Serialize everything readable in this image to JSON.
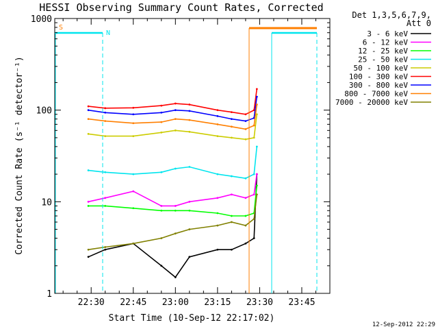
{
  "chart_data": {
    "type": "line",
    "title": "HESSI Observing Summary Count Rates, Corrected",
    "xlabel": "Start Time (10-Sep-12 22:17:02)",
    "ylabel": "Corrected Count Rate (s⁻¹ detector⁻¹)",
    "y_scale": "log",
    "xlim": [
      "22:17:02",
      "23:55:00"
    ],
    "ylim": [
      1,
      1000
    ],
    "x_ticks": [
      "22:30",
      "22:45",
      "23:00",
      "23:15",
      "23:30",
      "23:45"
    ],
    "y_ticks": [
      "1",
      "10",
      "100",
      "1000"
    ],
    "legend_header": [
      "Det 1,3,5,6,7,9,",
      "Att 0"
    ],
    "legend_position": "right",
    "timestamp": "12-Sep-2012 22:29",
    "flags": [
      {
        "label": "S",
        "color": "#ff7f00"
      },
      {
        "label": "N",
        "color": "#00e5ee"
      }
    ],
    "x": [
      "22:29",
      "22:35",
      "22:45",
      "22:55",
      "23:00",
      "23:05",
      "23:15",
      "23:20",
      "23:25",
      "23:28",
      "23:29"
    ],
    "series": [
      {
        "name": "3 - 6 keV",
        "color": "#000000",
        "values": [
          2.5,
          3.0,
          3.5,
          2.0,
          1.5,
          2.5,
          3.0,
          3.0,
          3.5,
          4.0,
          20
        ]
      },
      {
        "name": "6 - 12 keV",
        "color": "#ff00ff",
        "values": [
          10,
          11,
          13,
          9,
          9,
          10,
          11,
          12,
          11,
          12,
          20
        ]
      },
      {
        "name": "12 - 25 keV",
        "color": "#00ff00",
        "values": [
          9,
          9,
          8.5,
          8,
          8,
          8,
          7.5,
          7,
          7,
          7.5,
          15
        ]
      },
      {
        "name": "25 - 50 keV",
        "color": "#00e5ee",
        "values": [
          22,
          21,
          20,
          21,
          23,
          24,
          20,
          19,
          18,
          20,
          40
        ]
      },
      {
        "name": "50 - 100 keV",
        "color": "#cccc00",
        "values": [
          55,
          52,
          52,
          57,
          60,
          58,
          52,
          50,
          48,
          50,
          90
        ]
      },
      {
        "name": "100 - 300 keV",
        "color": "#ff0000",
        "values": [
          110,
          105,
          106,
          112,
          118,
          115,
          100,
          95,
          90,
          100,
          170
        ]
      },
      {
        "name": "300 - 800 keV",
        "color": "#0000ff",
        "values": [
          100,
          94,
          90,
          94,
          100,
          98,
          86,
          80,
          76,
          82,
          140
        ]
      },
      {
        "name": "800 - 7000 keV",
        "color": "#ff7f00",
        "values": [
          80,
          76,
          72,
          74,
          80,
          78,
          70,
          66,
          62,
          68,
          115
        ]
      },
      {
        "name": "7000 - 20000 keV",
        "color": "#808000",
        "values": [
          3.0,
          3.2,
          3.5,
          4.0,
          4.5,
          5.0,
          5.5,
          6.0,
          5.5,
          6.5,
          12
        ]
      }
    ]
  }
}
